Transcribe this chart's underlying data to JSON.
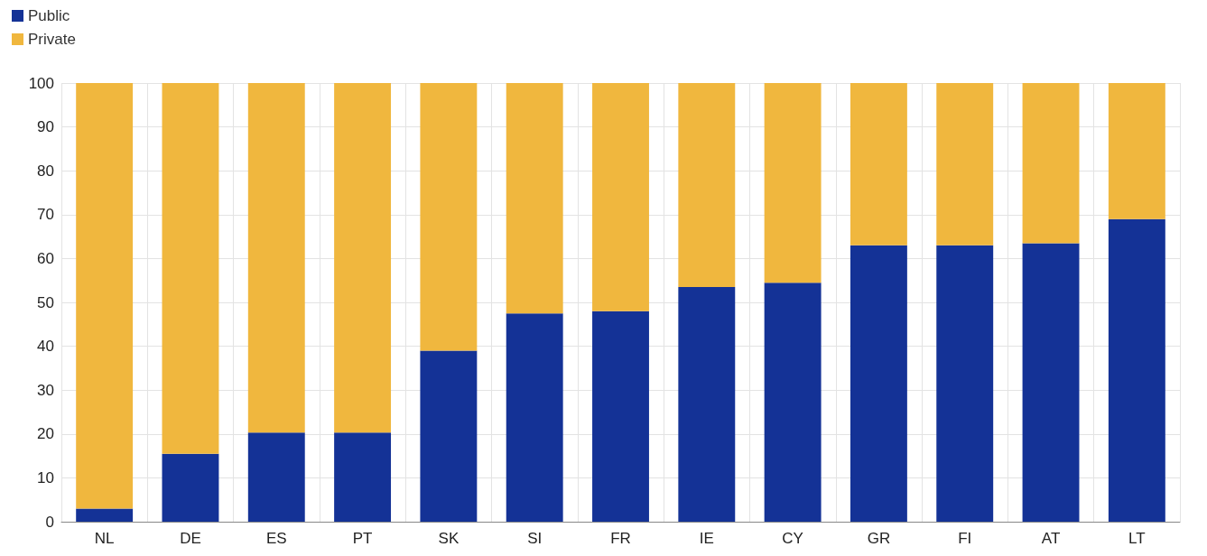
{
  "chart_data": {
    "type": "bar",
    "stacked": true,
    "categories": [
      "NL",
      "DE",
      "ES",
      "PT",
      "SK",
      "SI",
      "FR",
      "IE",
      "CY",
      "GR",
      "FI",
      "AT",
      "LT"
    ],
    "series": [
      {
        "name": "Public",
        "color": "#143296",
        "values": [
          3,
          15.5,
          20.3,
          20.3,
          39,
          47.5,
          48,
          53.5,
          54.5,
          63,
          63,
          63.5,
          69
        ]
      },
      {
        "name": "Private",
        "color": "#f0b73e",
        "values": [
          97,
          84.5,
          79.7,
          79.7,
          61,
          52.5,
          52,
          46.5,
          45.5,
          37,
          37,
          36.5,
          31
        ]
      }
    ],
    "ylim": [
      0,
      100
    ],
    "yticks": [
      0,
      10,
      20,
      30,
      40,
      50,
      60,
      70,
      80,
      90,
      100
    ],
    "grid": true,
    "legend": "top left"
  }
}
